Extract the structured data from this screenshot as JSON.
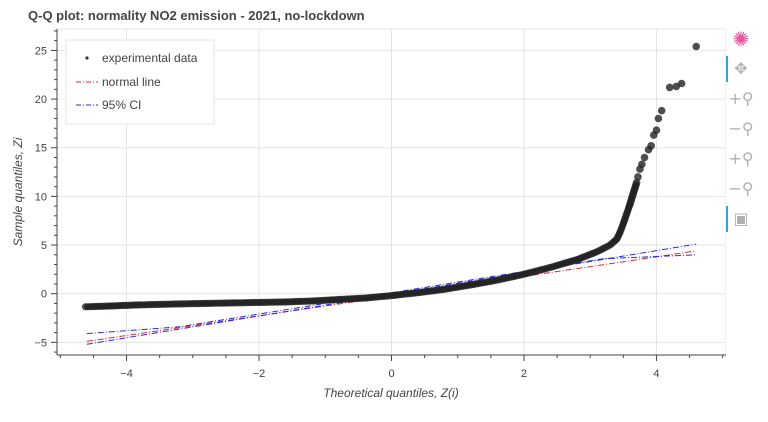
{
  "chart_data": {
    "type": "scatter",
    "title": "Q-Q plot: normality NO2 emission - 2021, no-lockdown",
    "xlabel": "Theoretical quantiles, Z(i)",
    "ylabel": "Sample quantiles, Zi",
    "xlim": [
      -5.05,
      5.05
    ],
    "ylim": [
      -6.3,
      27.2
    ],
    "x_ticks": [
      -4,
      -2,
      0,
      2,
      4
    ],
    "y_ticks": [
      -5,
      0,
      5,
      10,
      15,
      20,
      25
    ],
    "grid": true,
    "legend_position": "top-left",
    "legend": [
      "experimental data",
      "normal line",
      "95% CI"
    ],
    "series": [
      {
        "name": "experimental data",
        "kind": "points",
        "color": "#333333",
        "x": [
          -4.62,
          -4.4,
          -4.3,
          -4.2,
          -4.1,
          -4.0,
          -3.8,
          -3.5,
          -3.2,
          -2.8,
          -2.4,
          -2.0,
          -1.6,
          -1.2,
          -0.8,
          -0.4,
          0.0,
          0.4,
          0.8,
          1.2,
          1.6,
          2.0,
          2.4,
          2.8,
          3.1,
          3.3,
          3.4,
          3.45,
          3.5,
          3.55,
          3.6,
          3.65,
          3.7,
          3.72,
          3.75,
          3.78,
          3.82,
          3.88,
          3.92,
          3.96,
          4.0,
          4.03,
          4.08,
          4.2,
          4.3,
          4.38,
          4.6
        ],
        "y": [
          -1.35,
          -1.3,
          -1.28,
          -1.25,
          -1.22,
          -1.2,
          -1.15,
          -1.1,
          -1.05,
          -1.0,
          -0.95,
          -0.9,
          -0.85,
          -0.75,
          -0.6,
          -0.45,
          -0.2,
          0.1,
          0.45,
          0.9,
          1.4,
          2.0,
          2.7,
          3.5,
          4.3,
          5.0,
          5.6,
          6.3,
          7.2,
          8.2,
          9.2,
          10.3,
          11.4,
          12.0,
          12.8,
          13.3,
          14.0,
          14.8,
          15.2,
          16.3,
          16.8,
          18.0,
          18.8,
          21.2,
          21.3,
          21.6,
          25.4
        ]
      },
      {
        "name": "normal line",
        "kind": "line",
        "color": "#e0282e",
        "x": [
          -4.6,
          4.6
        ],
        "y": [
          -4.9,
          4.4
        ]
      },
      {
        "name": "95% CI",
        "kind": "line",
        "color": "#2b2bd6",
        "x": [
          -4.6,
          4.6
        ],
        "y": [
          -5.2,
          5.1
        ]
      },
      {
        "name": "95% CI",
        "kind": "line",
        "color": "#2b2bd6",
        "x": [
          -4.6,
          -3.2,
          3.2,
          4.6
        ],
        "y": [
          -4.1,
          -3.4,
          3.6,
          4.0
        ]
      }
    ]
  },
  "toolbar": {
    "items": [
      {
        "name": "bokeh-logo-icon",
        "glyph": "✺",
        "color": "#e05a9a"
      },
      {
        "name": "pan-icon",
        "glyph": "✥",
        "active": true
      },
      {
        "name": "zoom-in-icon",
        "glyph": "+⚲"
      },
      {
        "name": "zoom-out-icon",
        "glyph": "−⚲"
      },
      {
        "name": "box-zoom-in-icon",
        "glyph": "+⚲"
      },
      {
        "name": "box-zoom-out-icon",
        "glyph": "−⚲"
      },
      {
        "name": "hover-icon",
        "glyph": "▣",
        "active": true
      }
    ]
  }
}
